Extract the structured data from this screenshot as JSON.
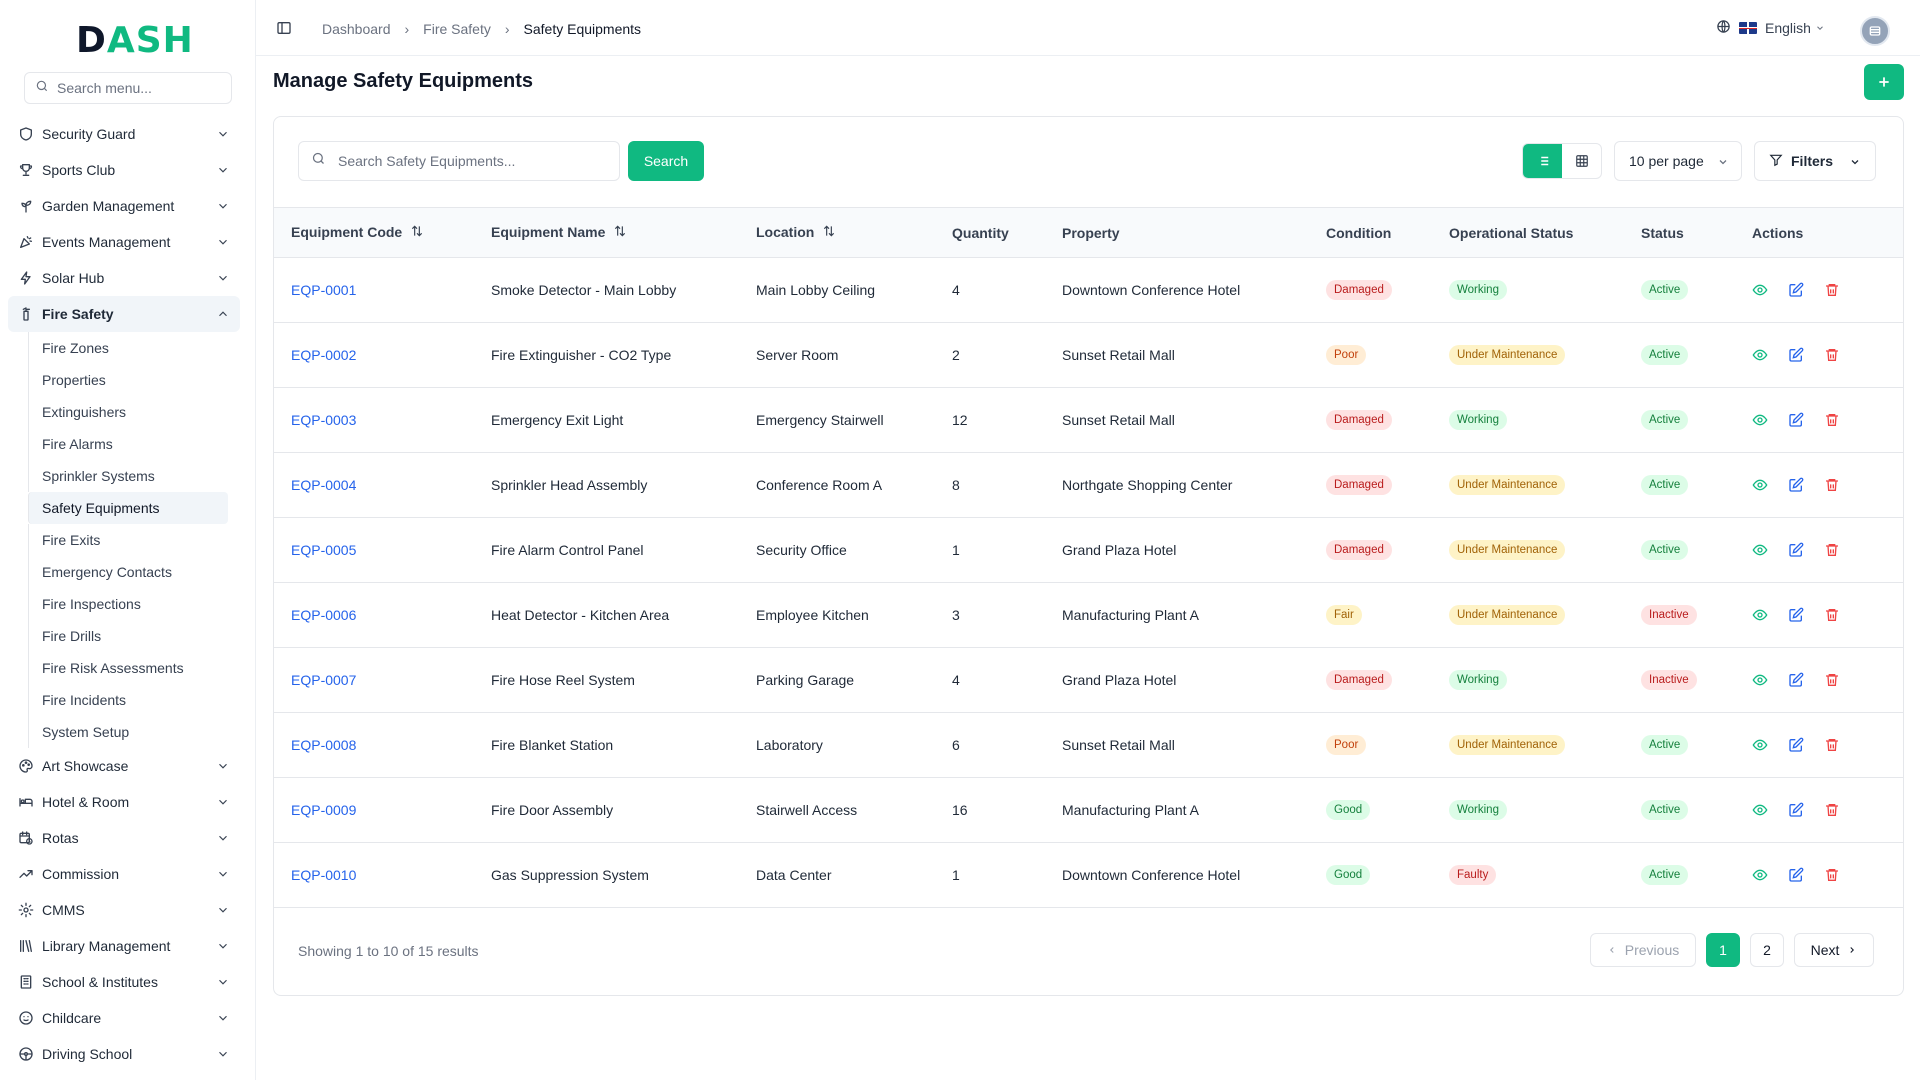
{
  "logo": {
    "text_a": "D",
    "text_b": "ASH"
  },
  "sidebar": {
    "search_placeholder": "Search menu...",
    "items_top": [
      {
        "label": "Security Guard",
        "icon": "shield-icon"
      },
      {
        "label": "Sports Club",
        "icon": "trophy-icon"
      },
      {
        "label": "Garden Management",
        "icon": "sprout-icon"
      },
      {
        "label": "Events Management",
        "icon": "party-icon"
      },
      {
        "label": "Solar Hub",
        "icon": "bolt-icon"
      }
    ],
    "active_item": {
      "label": "Fire Safety",
      "icon": "fire-extinguisher-icon"
    },
    "sub_items": [
      "Fire Zones",
      "Properties",
      "Extinguishers",
      "Fire Alarms",
      "Sprinkler Systems",
      "Safety Equipments",
      "Fire Exits",
      "Emergency Contacts",
      "Fire Inspections",
      "Fire Drills",
      "Fire Risk Assessments",
      "Fire Incidents",
      "System Setup"
    ],
    "active_sub": "Safety Equipments",
    "items_bottom": [
      {
        "label": "Art Showcase",
        "icon": "palette-icon"
      },
      {
        "label": "Hotel & Room",
        "icon": "bed-icon"
      },
      {
        "label": "Rotas",
        "icon": "calendar-clock-icon"
      },
      {
        "label": "Commission",
        "icon": "trend-icon"
      },
      {
        "label": "CMMS",
        "icon": "cog-icon"
      },
      {
        "label": "Library Management",
        "icon": "library-icon"
      },
      {
        "label": "School & Institutes",
        "icon": "building-icon"
      },
      {
        "label": "Childcare",
        "icon": "baby-icon"
      },
      {
        "label": "Driving School",
        "icon": "steering-icon"
      }
    ]
  },
  "topbar": {
    "breadcrumb": [
      "Dashboard",
      "Fire Safety",
      "Safety Equipments"
    ],
    "language": "English"
  },
  "page": {
    "title": "Manage Safety Equipments"
  },
  "toolbar": {
    "search_placeholder": "Search Safety Equipments...",
    "search_label": "Search",
    "per_page": "10 per page",
    "filters_label": "Filters"
  },
  "table": {
    "headers": [
      "Equipment Code",
      "Equipment Name",
      "Location",
      "Quantity",
      "Property",
      "Condition",
      "Operational Status",
      "Status",
      "Actions"
    ],
    "rows": [
      {
        "code": "EQP-0001",
        "name": "Smoke Detector - Main Lobby",
        "location": "Main Lobby Ceiling",
        "quantity": "4",
        "property": "Downtown Conference Hotel",
        "condition": "Damaged",
        "op_status": "Working",
        "status": "Active"
      },
      {
        "code": "EQP-0002",
        "name": "Fire Extinguisher - CO2 Type",
        "location": "Server Room",
        "quantity": "2",
        "property": "Sunset Retail Mall",
        "condition": "Poor",
        "op_status": "Under Maintenance",
        "status": "Active"
      },
      {
        "code": "EQP-0003",
        "name": "Emergency Exit Light",
        "location": "Emergency Stairwell",
        "quantity": "12",
        "property": "Sunset Retail Mall",
        "condition": "Damaged",
        "op_status": "Working",
        "status": "Active"
      },
      {
        "code": "EQP-0004",
        "name": "Sprinkler Head Assembly",
        "location": "Conference Room A",
        "quantity": "8",
        "property": "Northgate Shopping Center",
        "condition": "Damaged",
        "op_status": "Under Maintenance",
        "status": "Active"
      },
      {
        "code": "EQP-0005",
        "name": "Fire Alarm Control Panel",
        "location": "Security Office",
        "quantity": "1",
        "property": "Grand Plaza Hotel",
        "condition": "Damaged",
        "op_status": "Under Maintenance",
        "status": "Active"
      },
      {
        "code": "EQP-0006",
        "name": "Heat Detector - Kitchen Area",
        "location": "Employee Kitchen",
        "quantity": "3",
        "property": "Manufacturing Plant A",
        "condition": "Fair",
        "op_status": "Under Maintenance",
        "status": "Inactive"
      },
      {
        "code": "EQP-0007",
        "name": "Fire Hose Reel System",
        "location": "Parking Garage",
        "quantity": "4",
        "property": "Grand Plaza Hotel",
        "condition": "Damaged",
        "op_status": "Working",
        "status": "Inactive"
      },
      {
        "code": "EQP-0008",
        "name": "Fire Blanket Station",
        "location": "Laboratory",
        "quantity": "6",
        "property": "Sunset Retail Mall",
        "condition": "Poor",
        "op_status": "Under Maintenance",
        "status": "Active"
      },
      {
        "code": "EQP-0009",
        "name": "Fire Door Assembly",
        "location": "Stairwell Access",
        "quantity": "16",
        "property": "Manufacturing Plant A",
        "condition": "Good",
        "op_status": "Working",
        "status": "Active"
      },
      {
        "code": "EQP-0010",
        "name": "Gas Suppression System",
        "location": "Data Center",
        "quantity": "1",
        "property": "Downtown Conference Hotel",
        "condition": "Good",
        "op_status": "Faulty",
        "status": "Active"
      }
    ]
  },
  "footer": {
    "showing": "Showing 1 to 10 of 15 results",
    "prev": "Previous",
    "pages": [
      "1",
      "2"
    ],
    "current_page": "1",
    "next": "Next"
  },
  "colors": {
    "accent": "#10b981",
    "link": "#2563eb"
  }
}
